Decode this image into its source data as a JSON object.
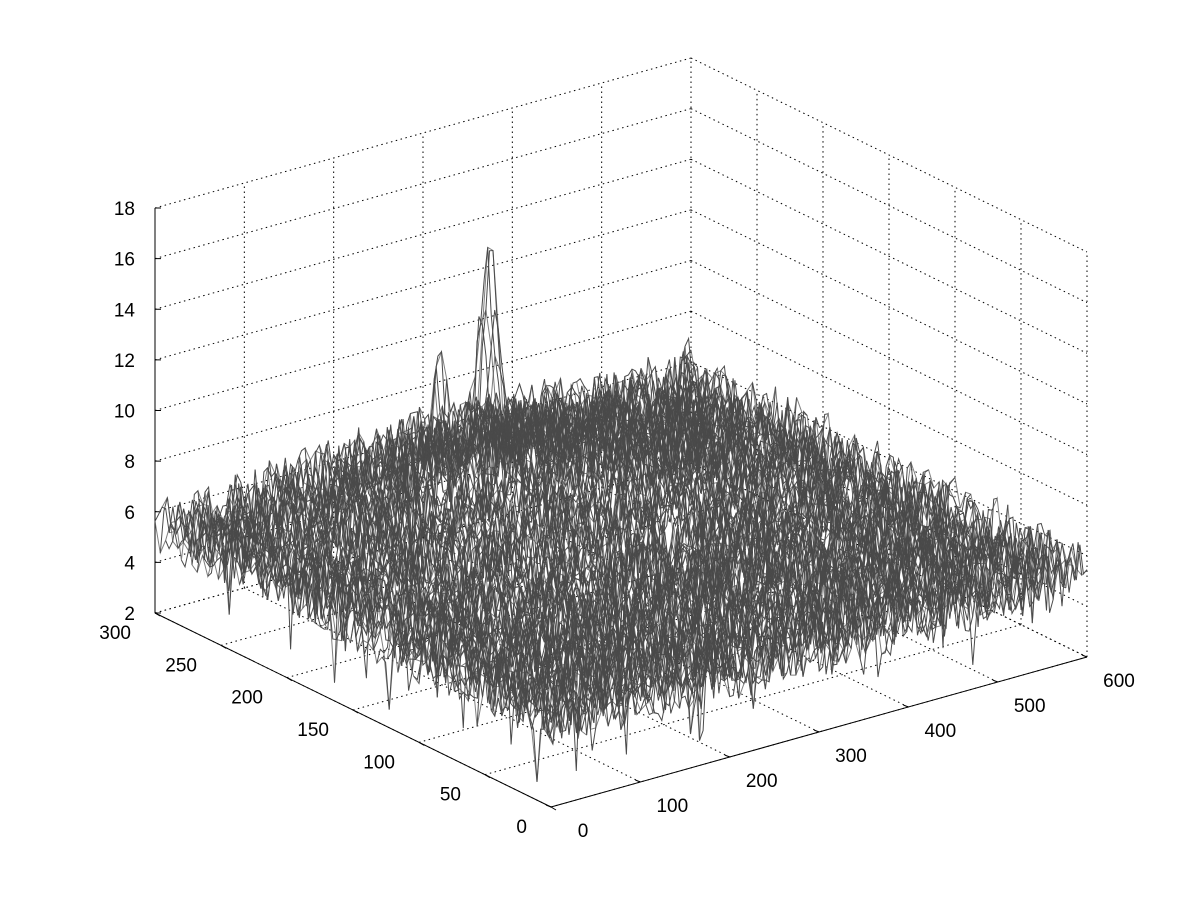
{
  "figure": {
    "background": "#ffffff",
    "surface_color": "#4a4a4a",
    "surface_highlight_color": "#b8b8b8"
  },
  "chart_data": {
    "type": "surface3d",
    "title": "",
    "xlabel": "",
    "ylabel": "",
    "zlabel": "",
    "grid": true,
    "colormap": "grayscale",
    "xlim": [
      0,
      600
    ],
    "ylim": [
      0,
      300
    ],
    "zlim": [
      2,
      18
    ],
    "x_ticks": [
      "0",
      "100",
      "200",
      "300",
      "400",
      "500",
      "600"
    ],
    "y_ticks": [
      "0",
      "50",
      "100",
      "150",
      "200",
      "250",
      "300"
    ],
    "z_ticks": [
      "2",
      "4",
      "6",
      "8",
      "10",
      "12",
      "14",
      "16",
      "18"
    ],
    "surface": {
      "grid_size": [
        512,
        256
      ],
      "baseline_level": 5.5,
      "noise_range": [
        2.5,
        9.5
      ],
      "peaks": [
        {
          "x": 270,
          "y": 230,
          "z": 15.5
        },
        {
          "x": 230,
          "y": 240,
          "z": 10.5
        },
        {
          "x": 420,
          "y": 180,
          "z": 11.5
        },
        {
          "x": 360,
          "y": 150,
          "z": 7.0
        }
      ]
    }
  }
}
